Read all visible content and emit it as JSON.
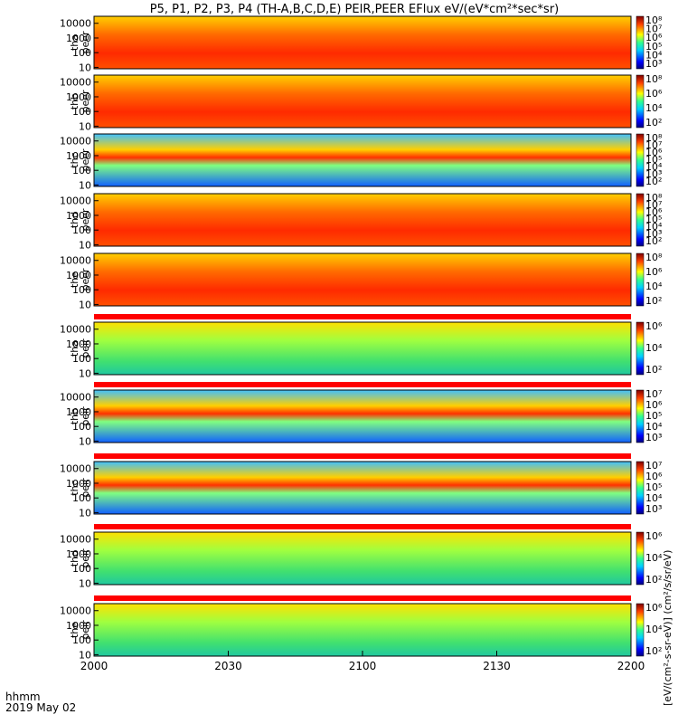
{
  "figure": {
    "title": "P5, P1, P2, P3, P4 (TH-A,B,C,D,E) PEIR,PEER EFlux eV/(eV*cm²*sec*sr)",
    "time_label": "hhmm",
    "date_label": "2019 May 02",
    "colorbar_unit": "[eV/(cm²-s-sr-eV)] (cm²/s/sr/eV)"
  },
  "chart_data": {
    "type": "heatmap",
    "x_ticks": [
      "2000",
      "2030",
      "2100",
      "2130",
      "2200"
    ],
    "xlim": [
      "2000",
      "2200"
    ],
    "y_scale": "log",
    "ylim": [
      8,
      30000
    ],
    "panels": [
      {
        "probe": "tha",
        "species": "peer",
        "y_ticks": [
          "10",
          "100",
          "1000",
          "10000"
        ],
        "cb_ticks": [
          "10⁸",
          "10⁷",
          "10⁶",
          "10⁵",
          "10⁴",
          "10³"
        ],
        "bar_above": false
      },
      {
        "probe": "thb",
        "species": "peer",
        "y_ticks": [
          "10",
          "100",
          "1000",
          "10000"
        ],
        "cb_ticks": [
          "10⁸",
          "10⁶",
          "10⁴",
          "10²"
        ],
        "bar_above": false
      },
      {
        "probe": "thc",
        "species": "peer",
        "y_ticks": [
          "10",
          "100",
          "1000",
          "10000"
        ],
        "cb_ticks": [
          "10⁸",
          "10⁷",
          "10⁶",
          "10⁵",
          "10⁴",
          "10³",
          "10²"
        ],
        "bar_above": false
      },
      {
        "probe": "thd",
        "species": "peer",
        "y_ticks": [
          "10",
          "100",
          "1000",
          "10000"
        ],
        "cb_ticks": [
          "10⁸",
          "10⁷",
          "10⁶",
          "10⁵",
          "10⁴",
          "10³",
          "10²"
        ],
        "bar_above": false
      },
      {
        "probe": "the",
        "species": "peer",
        "y_ticks": [
          "10",
          "100",
          "1000",
          "10000"
        ],
        "cb_ticks": [
          "10⁸",
          "10⁶",
          "10⁴",
          "10²"
        ],
        "bar_above": false
      },
      {
        "probe": "tha",
        "species": "peir",
        "y_ticks": [
          "10",
          "100",
          "1000",
          "10000"
        ],
        "cb_ticks": [
          "10⁶",
          "10⁴",
          "10²"
        ],
        "bar_above": true
      },
      {
        "probe": "thb",
        "species": "peir",
        "y_ticks": [
          "10",
          "100",
          "1000",
          "10000"
        ],
        "cb_ticks": [
          "10⁷",
          "10⁶",
          "10⁵",
          "10⁴",
          "10³"
        ],
        "bar_above": true
      },
      {
        "probe": "thc",
        "species": "peir",
        "y_ticks": [
          "10",
          "100",
          "1000",
          "10000"
        ],
        "cb_ticks": [
          "10⁷",
          "10⁶",
          "10⁵",
          "10⁴",
          "10³"
        ],
        "bar_above": true
      },
      {
        "probe": "thd",
        "species": "peir",
        "y_ticks": [
          "10",
          "100",
          "1000",
          "10000"
        ],
        "cb_ticks": [
          "10⁶",
          "10⁴",
          "10²"
        ],
        "bar_above": true
      },
      {
        "probe": "the",
        "species": "peir",
        "y_ticks": [
          "10",
          "100",
          "1000",
          "10000"
        ],
        "cb_ticks": [
          "10⁶",
          "10⁴",
          "10²"
        ],
        "bar_above": true
      }
    ]
  }
}
